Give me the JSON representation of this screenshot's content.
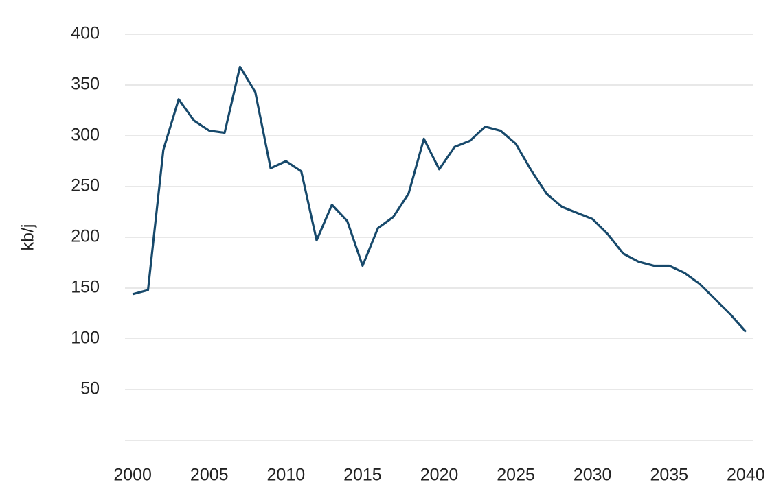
{
  "chart_data": {
    "type": "line",
    "y_label": "kb/j",
    "x": [
      2000,
      2001,
      2002,
      2003,
      2004,
      2005,
      2006,
      2007,
      2008,
      2009,
      2010,
      2011,
      2012,
      2013,
      2014,
      2015,
      2016,
      2017,
      2018,
      2019,
      2020,
      2021,
      2022,
      2023,
      2024,
      2025,
      2026,
      2027,
      2028,
      2029,
      2030,
      2031,
      2032,
      2033,
      2034,
      2035,
      2036,
      2037,
      2038,
      2039,
      2040
    ],
    "series": [
      {
        "color": "#17496b",
        "values": [
          144,
          148,
          286,
          336,
          315,
          305,
          303,
          368,
          343,
          268,
          275,
          265,
          197,
          232,
          216,
          172,
          209,
          220,
          243,
          297,
          267,
          289,
          295,
          309,
          305,
          292,
          266,
          243,
          230,
          224,
          218,
          203,
          184,
          176,
          172,
          172,
          165,
          154,
          139,
          124,
          107
        ]
      }
    ],
    "xlim": [
      1999.5,
      2040.5
    ],
    "xticks": [
      2000,
      2005,
      2010,
      2015,
      2020,
      2025,
      2030,
      2035,
      2040
    ],
    "ylim": [
      0,
      400
    ],
    "yticks": [
      50,
      100,
      150,
      200,
      250,
      300,
      350,
      400
    ],
    "grid": true
  }
}
